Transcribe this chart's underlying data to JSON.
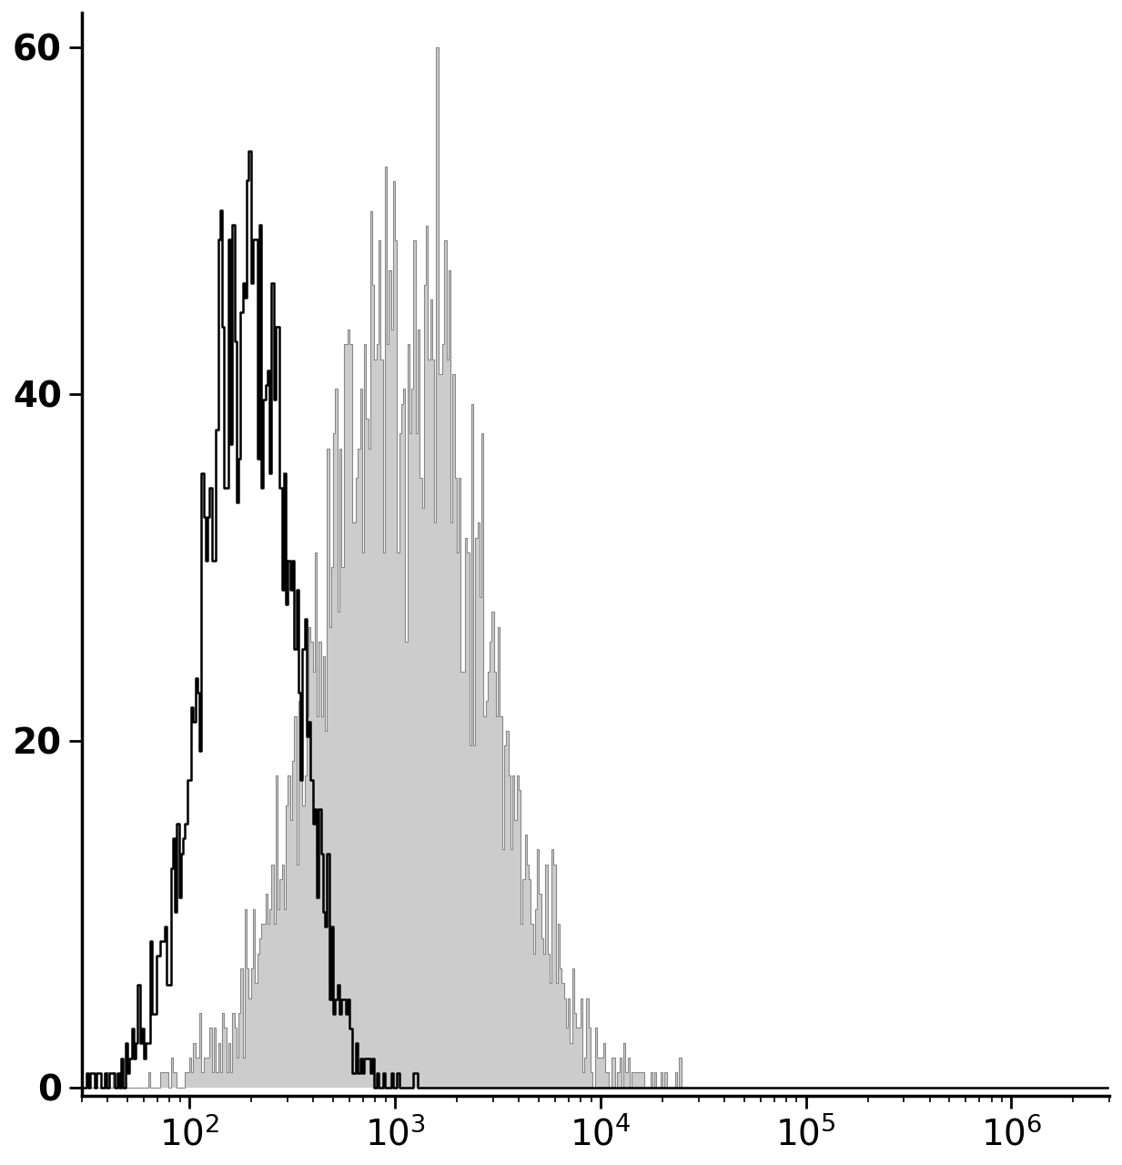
{
  "background_color": "#ffffff",
  "xlim": [
    30,
    3000000
  ],
  "ylim": [
    -0.5,
    62
  ],
  "yticks": [
    0,
    20,
    40,
    60
  ],
  "tick_fontsize": 28,
  "gray_fill_color": "#cccccc",
  "gray_edge_color": "#888888",
  "black_edge_color": "#000000",
  "black_hist_mean": 2.28,
  "black_hist_std": 0.22,
  "gray_hist_mean": 3.05,
  "gray_hist_std": 0.38,
  "n_cells_black": 3000,
  "n_cells_gray": 5000,
  "black_peak_scale": 54.0,
  "gray_peak_scale": 60.0,
  "seed": 17,
  "bins": 500,
  "figwidth": 12.33,
  "figheight": 12.8,
  "dpi": 100
}
